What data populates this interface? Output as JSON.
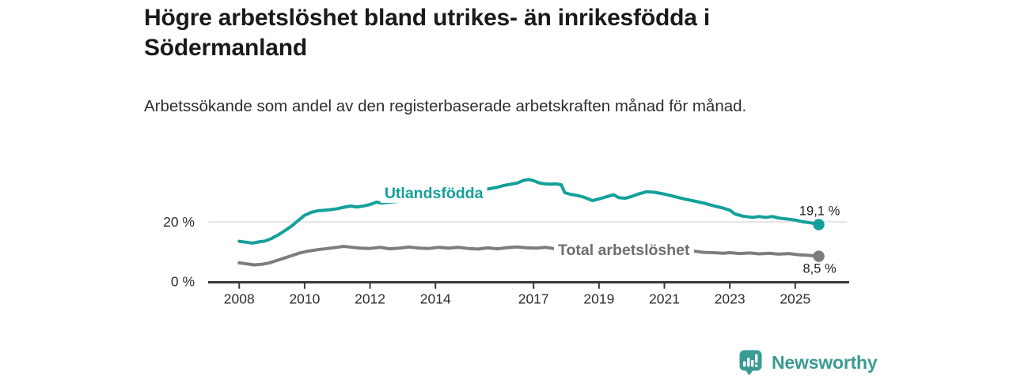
{
  "header": {
    "title": "Högre arbetslöshet bland utrikes- än inrikesfödda i Södermanland",
    "subtitle": "Arbetssökande som andel av den registerbaserade arbetskraften månad för månad."
  },
  "footer": {
    "brand": "Newsworthy",
    "brand_color": "#3a9a94",
    "logo_icon": "bar-chart-speech-bubble-icon"
  },
  "colors": {
    "background": "#ffffff",
    "axis": "#3a3a3a",
    "tick_text": "#2e2e2e",
    "gridline": "#d8d8d8",
    "end_label_text": "#1f1f1f",
    "series_utlandsfodda": "#14a09a",
    "series_total": "#7d7d7d",
    "label_total": "#6f6f6f"
  },
  "chart_data": {
    "type": "line",
    "title": "Högre arbetslöshet bland utrikes- än inrikesfödda i Södermanland",
    "subtitle": "Arbetssökande som andel av den registerbaserade arbetskraften månad för månad.",
    "xlabel": "",
    "ylabel": "",
    "xlim": [
      2007.05,
      2026.65
    ],
    "ylim": [
      0,
      41.4
    ],
    "grid": "single-horizontal-at-20",
    "legend_position": "inline-labels-on-lines",
    "x_ticks": [
      {
        "value": 2008,
        "label": "2008"
      },
      {
        "value": 2010,
        "label": "2010"
      },
      {
        "value": 2012,
        "label": "2012"
      },
      {
        "value": 2014,
        "label": "2014"
      },
      {
        "value": 2017,
        "label": "2017"
      },
      {
        "value": 2019,
        "label": "2019"
      },
      {
        "value": 2021,
        "label": "2021"
      },
      {
        "value": 2023,
        "label": "2023"
      },
      {
        "value": 2025,
        "label": "2025"
      }
    ],
    "y_axis_labels": [
      {
        "value": 20,
        "label": "20 %",
        "gridline": true
      },
      {
        "value": 0,
        "label": "0 %",
        "gridline": false
      }
    ],
    "series": [
      {
        "name": "Utlandsfödda",
        "color": "#14a09a",
        "label_color": "#14a09a",
        "label_pos": {
          "x": 2013.95,
          "y": 29.8
        },
        "end_label": "19,1 %",
        "end_value": 19.1,
        "end_label_position": "above",
        "points": [
          [
            2008.0,
            13.5
          ],
          [
            2008.2,
            13.2
          ],
          [
            2008.4,
            12.9
          ],
          [
            2008.6,
            13.3
          ],
          [
            2008.8,
            13.6
          ],
          [
            2009.0,
            14.5
          ],
          [
            2009.2,
            15.7
          ],
          [
            2009.4,
            17.1
          ],
          [
            2009.6,
            18.6
          ],
          [
            2009.8,
            20.4
          ],
          [
            2010.0,
            22.2
          ],
          [
            2010.2,
            23.2
          ],
          [
            2010.4,
            23.7
          ],
          [
            2010.6,
            23.9
          ],
          [
            2010.8,
            24.1
          ],
          [
            2011.0,
            24.4
          ],
          [
            2011.2,
            24.9
          ],
          [
            2011.4,
            25.3
          ],
          [
            2011.6,
            25.0
          ],
          [
            2011.8,
            25.3
          ],
          [
            2012.0,
            25.8
          ],
          [
            2012.2,
            26.6
          ],
          [
            2012.35,
            26.3
          ],
          [
            2012.6,
            26.6
          ],
          [
            2012.9,
            26.9
          ],
          [
            2013.2,
            27.2
          ],
          [
            2013.6,
            27.6
          ],
          [
            2014.0,
            28.1
          ],
          [
            2014.4,
            28.7
          ],
          [
            2014.8,
            29.4
          ],
          [
            2015.2,
            30.1
          ],
          [
            2015.6,
            31.0
          ],
          [
            2015.9,
            31.6
          ],
          [
            2016.1,
            32.2
          ],
          [
            2016.3,
            32.6
          ],
          [
            2016.5,
            33.0
          ],
          [
            2016.7,
            33.9
          ],
          [
            2016.85,
            34.2
          ],
          [
            2017.0,
            33.8
          ],
          [
            2017.15,
            33.1
          ],
          [
            2017.3,
            32.8
          ],
          [
            2017.5,
            32.6
          ],
          [
            2017.7,
            32.7
          ],
          [
            2017.85,
            32.4
          ],
          [
            2017.95,
            29.8
          ],
          [
            2018.1,
            29.3
          ],
          [
            2018.3,
            28.9
          ],
          [
            2018.5,
            28.4
          ],
          [
            2018.65,
            27.8
          ],
          [
            2018.8,
            27.1
          ],
          [
            2019.0,
            27.7
          ],
          [
            2019.2,
            28.3
          ],
          [
            2019.45,
            29.1
          ],
          [
            2019.6,
            28.1
          ],
          [
            2019.8,
            27.9
          ],
          [
            2020.0,
            28.5
          ],
          [
            2020.2,
            29.3
          ],
          [
            2020.45,
            30.1
          ],
          [
            2020.7,
            29.9
          ],
          [
            2021.0,
            29.3
          ],
          [
            2021.3,
            28.5
          ],
          [
            2021.6,
            27.7
          ],
          [
            2021.9,
            27.0
          ],
          [
            2022.2,
            26.3
          ],
          [
            2022.5,
            25.4
          ],
          [
            2022.8,
            24.6
          ],
          [
            2023.0,
            23.9
          ],
          [
            2023.15,
            22.7
          ],
          [
            2023.4,
            21.9
          ],
          [
            2023.7,
            21.5
          ],
          [
            2023.9,
            21.8
          ],
          [
            2024.1,
            21.5
          ],
          [
            2024.3,
            21.8
          ],
          [
            2024.55,
            21.2
          ],
          [
            2024.8,
            20.9
          ],
          [
            2025.0,
            20.6
          ],
          [
            2025.2,
            20.1
          ],
          [
            2025.45,
            19.7
          ],
          [
            2025.72,
            19.1
          ]
        ]
      },
      {
        "name": "Total arbetslöshet",
        "color": "#7d7d7d",
        "label_color": "#6f6f6f",
        "label_pos": {
          "x": 2019.76,
          "y": 10.75
        },
        "end_label": "8,5 %",
        "end_value": 8.5,
        "end_label_position": "below",
        "points": [
          [
            2008.0,
            6.3
          ],
          [
            2008.2,
            6.0
          ],
          [
            2008.45,
            5.6
          ],
          [
            2008.7,
            5.8
          ],
          [
            2008.9,
            6.2
          ],
          [
            2009.1,
            6.9
          ],
          [
            2009.35,
            7.8
          ],
          [
            2009.6,
            8.7
          ],
          [
            2009.85,
            9.6
          ],
          [
            2010.1,
            10.2
          ],
          [
            2010.4,
            10.7
          ],
          [
            2010.7,
            11.1
          ],
          [
            2011.0,
            11.5
          ],
          [
            2011.2,
            11.8
          ],
          [
            2011.45,
            11.5
          ],
          [
            2011.7,
            11.2
          ],
          [
            2012.0,
            11.1
          ],
          [
            2012.3,
            11.5
          ],
          [
            2012.6,
            11.0
          ],
          [
            2012.9,
            11.2
          ],
          [
            2013.2,
            11.6
          ],
          [
            2013.5,
            11.2
          ],
          [
            2013.8,
            11.1
          ],
          [
            2014.1,
            11.5
          ],
          [
            2014.4,
            11.2
          ],
          [
            2014.7,
            11.5
          ],
          [
            2015.0,
            11.1
          ],
          [
            2015.3,
            10.9
          ],
          [
            2015.6,
            11.3
          ],
          [
            2015.9,
            11.0
          ],
          [
            2016.2,
            11.4
          ],
          [
            2016.5,
            11.6
          ],
          [
            2016.8,
            11.3
          ],
          [
            2017.1,
            11.2
          ],
          [
            2017.35,
            11.5
          ],
          [
            2017.6,
            11.1
          ],
          [
            2018.0,
            10.7
          ],
          [
            2018.4,
            10.4
          ],
          [
            2018.8,
            10.6
          ],
          [
            2019.2,
            10.9
          ],
          [
            2019.6,
            10.7
          ],
          [
            2020.0,
            11.0
          ],
          [
            2020.4,
            11.5
          ],
          [
            2020.8,
            11.3
          ],
          [
            2021.2,
            10.9
          ],
          [
            2021.6,
            10.6
          ],
          [
            2022.0,
            10.1
          ],
          [
            2022.2,
            9.8
          ],
          [
            2022.5,
            9.7
          ],
          [
            2022.8,
            9.5
          ],
          [
            2023.0,
            9.7
          ],
          [
            2023.3,
            9.4
          ],
          [
            2023.6,
            9.6
          ],
          [
            2023.9,
            9.3
          ],
          [
            2024.2,
            9.5
          ],
          [
            2024.5,
            9.2
          ],
          [
            2024.8,
            9.4
          ],
          [
            2025.1,
            9.0
          ],
          [
            2025.4,
            8.8
          ],
          [
            2025.72,
            8.5
          ]
        ]
      }
    ]
  }
}
